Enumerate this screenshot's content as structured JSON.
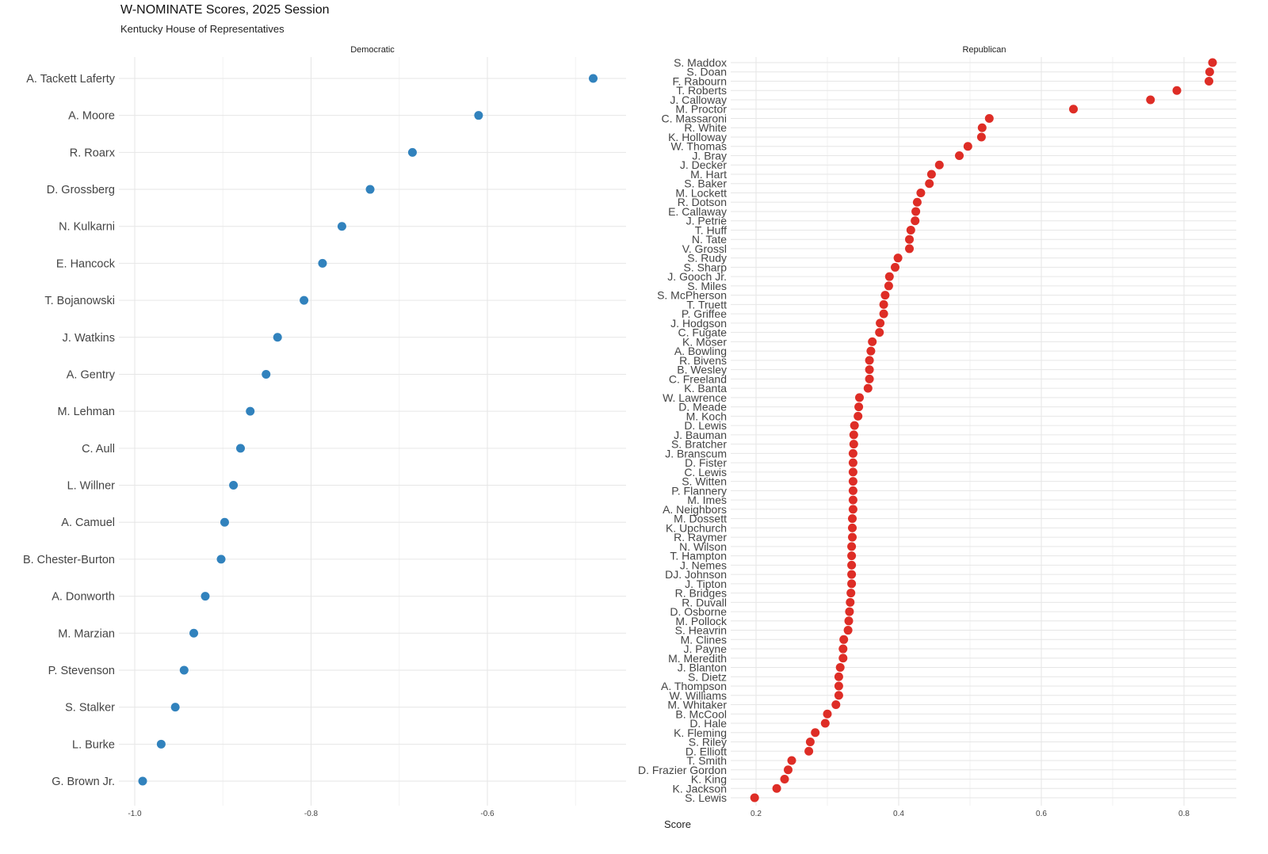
{
  "chart_data": [
    {
      "type": "scatter",
      "panel": "Democratic",
      "title": "W-NOMINATE Scores, 2025 Session",
      "subtitle": "Kentucky House of Representatives",
      "xlabel": "Score",
      "xlim": [
        -1.0,
        -0.47
      ],
      "xticks": [
        "-1.0",
        "-0.8",
        "-0.6"
      ],
      "point_color": "#3182bd",
      "grid": true,
      "points": [
        {
          "name": "A. Tackett Laferty",
          "score": -0.48
        },
        {
          "name": "A. Moore",
          "score": -0.61
        },
        {
          "name": "R. Roarx",
          "score": -0.685
        },
        {
          "name": "D. Grossberg",
          "score": -0.733
        },
        {
          "name": "N. Kulkarni",
          "score": -0.765
        },
        {
          "name": "E. Hancock",
          "score": -0.787
        },
        {
          "name": "T. Bojanowski",
          "score": -0.808
        },
        {
          "name": "J. Watkins",
          "score": -0.838
        },
        {
          "name": "A. Gentry",
          "score": -0.851
        },
        {
          "name": "M. Lehman",
          "score": -0.869
        },
        {
          "name": "C. Aull",
          "score": -0.88
        },
        {
          "name": "L. Willner",
          "score": -0.888
        },
        {
          "name": "A. Camuel",
          "score": -0.898
        },
        {
          "name": "B. Chester-Burton",
          "score": -0.902
        },
        {
          "name": "A. Donworth",
          "score": -0.92
        },
        {
          "name": "M. Marzian",
          "score": -0.933
        },
        {
          "name": "P. Stevenson",
          "score": -0.944
        },
        {
          "name": "S. Stalker",
          "score": -0.954
        },
        {
          "name": "L. Burke",
          "score": -0.97
        },
        {
          "name": "G. Brown Jr.",
          "score": -0.991
        }
      ]
    },
    {
      "type": "scatter",
      "panel": "Republican",
      "xlabel": "Score",
      "xlim": [
        0.19,
        0.86
      ],
      "xticks": [
        "0.2",
        "0.4",
        "0.6",
        "0.8"
      ],
      "point_color": "#de2d26",
      "grid": true,
      "points": [
        {
          "name": "S. Maddox",
          "score": 0.84
        },
        {
          "name": "S. Doan",
          "score": 0.836
        },
        {
          "name": "F. Rabourn",
          "score": 0.835
        },
        {
          "name": "T. Roberts",
          "score": 0.79
        },
        {
          "name": "J. Calloway",
          "score": 0.753
        },
        {
          "name": "M. Proctor",
          "score": 0.645
        },
        {
          "name": "C. Massaroni",
          "score": 0.527
        },
        {
          "name": "R. White",
          "score": 0.517
        },
        {
          "name": "K. Holloway",
          "score": 0.516
        },
        {
          "name": "W. Thomas",
          "score": 0.497
        },
        {
          "name": "J. Bray",
          "score": 0.485
        },
        {
          "name": "J. Decker",
          "score": 0.457
        },
        {
          "name": "M. Hart",
          "score": 0.446
        },
        {
          "name": "S. Baker",
          "score": 0.443
        },
        {
          "name": "M. Lockett",
          "score": 0.431
        },
        {
          "name": "R. Dotson",
          "score": 0.426
        },
        {
          "name": "E. Callaway",
          "score": 0.424
        },
        {
          "name": "J. Petrie",
          "score": 0.423
        },
        {
          "name": "T. Huff",
          "score": 0.417
        },
        {
          "name": "N. Tate",
          "score": 0.415
        },
        {
          "name": "V. Grossl",
          "score": 0.415
        },
        {
          "name": "S. Rudy",
          "score": 0.399
        },
        {
          "name": "S. Sharp",
          "score": 0.395
        },
        {
          "name": "J. Gooch Jr.",
          "score": 0.387
        },
        {
          "name": "S. Miles",
          "score": 0.386
        },
        {
          "name": "S. McPherson",
          "score": 0.381
        },
        {
          "name": "T. Truett",
          "score": 0.379
        },
        {
          "name": "P. Griffee",
          "score": 0.379
        },
        {
          "name": "J. Hodgson",
          "score": 0.374
        },
        {
          "name": "C. Fugate",
          "score": 0.373
        },
        {
          "name": "K. Moser",
          "score": 0.363
        },
        {
          "name": "A. Bowling",
          "score": 0.361
        },
        {
          "name": "R. Bivens",
          "score": 0.359
        },
        {
          "name": "B. Wesley",
          "score": 0.359
        },
        {
          "name": "C. Freeland",
          "score": 0.359
        },
        {
          "name": "K. Banta",
          "score": 0.357
        },
        {
          "name": "W. Lawrence",
          "score": 0.345
        },
        {
          "name": "D. Meade",
          "score": 0.344
        },
        {
          "name": "M. Koch",
          "score": 0.343
        },
        {
          "name": "D. Lewis",
          "score": 0.338
        },
        {
          "name": "J. Bauman",
          "score": 0.337
        },
        {
          "name": "S. Bratcher",
          "score": 0.337
        },
        {
          "name": "J. Branscum",
          "score": 0.336
        },
        {
          "name": "D. Fister",
          "score": 0.336
        },
        {
          "name": "C. Lewis",
          "score": 0.336
        },
        {
          "name": "S. Witten",
          "score": 0.336
        },
        {
          "name": "P. Flannery",
          "score": 0.336
        },
        {
          "name": "M. Imes",
          "score": 0.336
        },
        {
          "name": "A. Neighbors",
          "score": 0.336
        },
        {
          "name": "M. Dossett",
          "score": 0.335
        },
        {
          "name": "K. Upchurch",
          "score": 0.335
        },
        {
          "name": "R. Raymer",
          "score": 0.335
        },
        {
          "name": "N. Wilson",
          "score": 0.334
        },
        {
          "name": "T. Hampton",
          "score": 0.334
        },
        {
          "name": "J. Nemes",
          "score": 0.334
        },
        {
          "name": "DJ. Johnson",
          "score": 0.334
        },
        {
          "name": "J. Tipton",
          "score": 0.334
        },
        {
          "name": "R. Bridges",
          "score": 0.333
        },
        {
          "name": "R. Duvall",
          "score": 0.332
        },
        {
          "name": "D. Osborne",
          "score": 0.331
        },
        {
          "name": "M. Pollock",
          "score": 0.33
        },
        {
          "name": "S. Heavrin",
          "score": 0.329
        },
        {
          "name": "M. Clines",
          "score": 0.323
        },
        {
          "name": "J. Payne",
          "score": 0.322
        },
        {
          "name": "M. Meredith",
          "score": 0.322
        },
        {
          "name": "J. Blanton",
          "score": 0.318
        },
        {
          "name": "S. Dietz",
          "score": 0.316
        },
        {
          "name": "A. Thompson",
          "score": 0.316
        },
        {
          "name": "W. Williams",
          "score": 0.316
        },
        {
          "name": "M. Whitaker",
          "score": 0.312
        },
        {
          "name": "B. McCool",
          "score": 0.3
        },
        {
          "name": "D. Hale",
          "score": 0.297
        },
        {
          "name": "K. Fleming",
          "score": 0.283
        },
        {
          "name": "S. Riley",
          "score": 0.276
        },
        {
          "name": "D. Elliott",
          "score": 0.274
        },
        {
          "name": "T. Smith",
          "score": 0.25
        },
        {
          "name": "D. Frazier Gordon",
          "score": 0.245
        },
        {
          "name": "K. King",
          "score": 0.24
        },
        {
          "name": "K. Jackson",
          "score": 0.229
        },
        {
          "name": "S. Lewis",
          "score": 0.198
        }
      ]
    }
  ]
}
